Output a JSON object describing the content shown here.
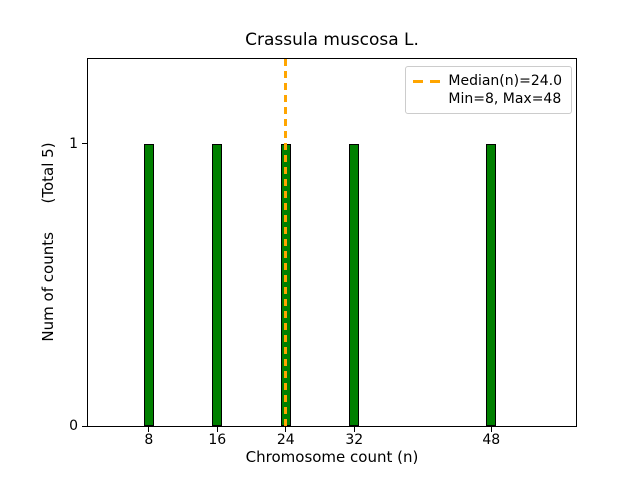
{
  "chart_data": {
    "type": "bar",
    "title": "Crassula muscosa L.",
    "xlabel": "Chromosome count (n)",
    "ylabel": "Num of counts      (Total 5)",
    "categories": [
      8,
      16,
      24,
      32,
      48
    ],
    "values": [
      1,
      1,
      1,
      1,
      1
    ],
    "total_counts": 5,
    "median_n": 24.0,
    "min_n": 8,
    "max_n": 48,
    "xticks": [
      8,
      16,
      24,
      32,
      48
    ],
    "yticks": [
      0,
      1
    ],
    "xlim": [
      0.9,
      57.9
    ],
    "ylim": [
      0,
      1.3
    ],
    "bar_width_units": 1.2,
    "grid": false,
    "legend": {
      "position": "upper right",
      "items": [
        {
          "label": "Median(n)=24.0",
          "marker": "orange-dashed-line"
        },
        {
          "label": "Min=8, Max=48",
          "marker": "none"
        }
      ]
    },
    "colors": {
      "bar_fill": "#008000",
      "bar_edge": "#000000",
      "median_line": "#FFA500",
      "axis": "#000000",
      "text": "#000000",
      "legend_border": "#cccccc",
      "background": "#ffffff"
    }
  }
}
